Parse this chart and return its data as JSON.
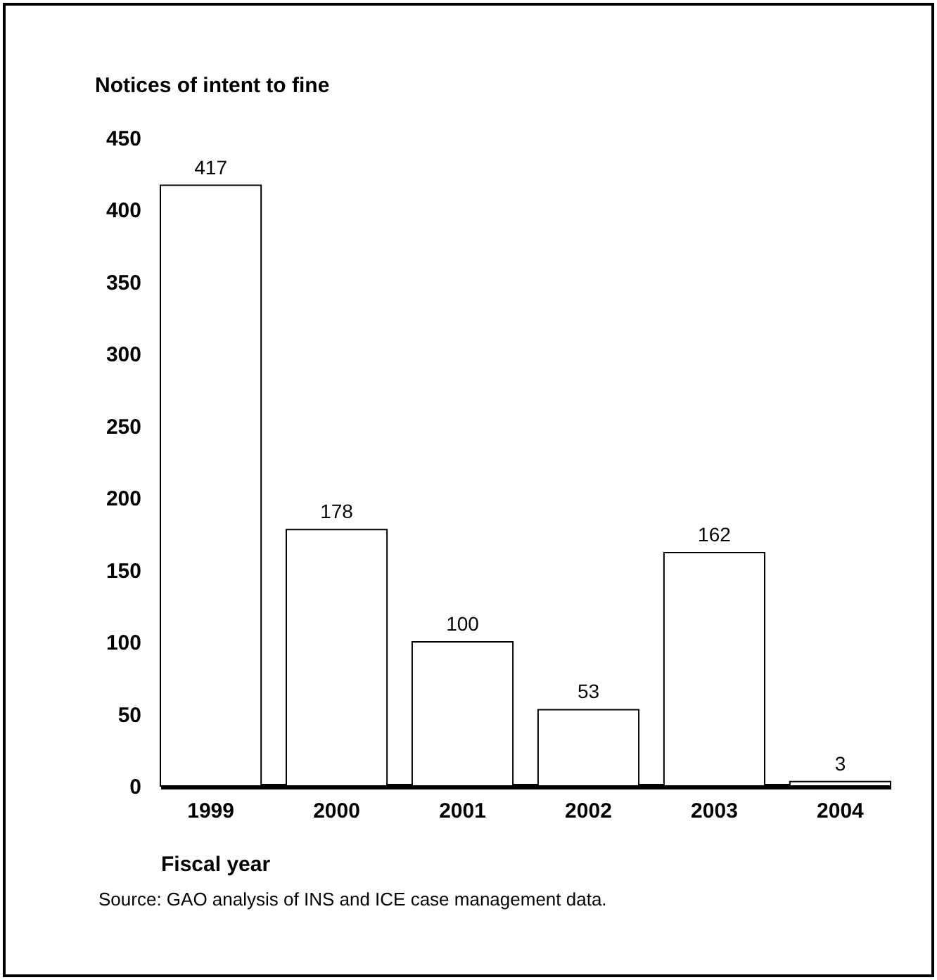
{
  "chart_data": {
    "type": "bar",
    "ylabel": "Notices of intent to fine",
    "xlabel": "Fiscal year",
    "categories": [
      "1999",
      "2000",
      "2001",
      "2002",
      "2003",
      "2004"
    ],
    "values": [
      417,
      178,
      100,
      53,
      162,
      3
    ],
    "color": "#ffffff",
    "ylim": [
      0,
      450
    ],
    "yticks": [
      0,
      50,
      100,
      150,
      200,
      250,
      300,
      350,
      400,
      450
    ],
    "data_labels": true,
    "annotations": [
      "Source: GAO analysis of INS and ICE case management data."
    ]
  }
}
